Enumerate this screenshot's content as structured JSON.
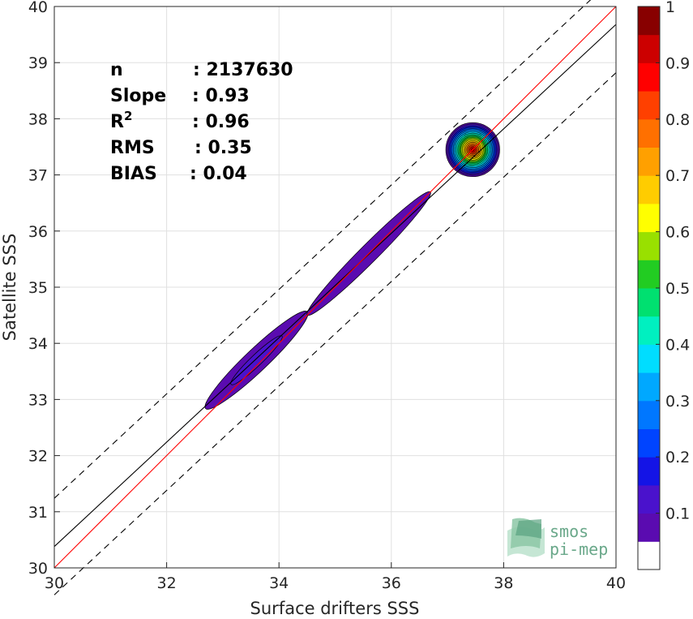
{
  "chart_data": {
    "type": "contour",
    "xlabel": "Surface drifters SSS",
    "ylabel": "Satellite SSS",
    "xlim": [
      30,
      40
    ],
    "ylim": [
      30,
      40
    ],
    "x_ticks": [
      "30",
      "32",
      "34",
      "36",
      "38",
      "40"
    ],
    "y_ticks": [
      "30",
      "31",
      "32",
      "33",
      "34",
      "35",
      "36",
      "37",
      "38",
      "39",
      "40"
    ],
    "grid": true,
    "stats": [
      {
        "label": "n",
        "value": ": 2137630"
      },
      {
        "label": "Slope",
        "value": ": 0.93"
      },
      {
        "label": "R",
        "sup": "2",
        "value": ": 0.96"
      },
      {
        "label": "RMS",
        "value": ": 0.35"
      },
      {
        "label": "BIAS",
        "value": ": 0.04"
      }
    ],
    "lines": {
      "one_to_one": {
        "slope": 1,
        "intercept": 0,
        "color": "#ff0000"
      },
      "regression": {
        "slope": 0.93,
        "intercept": 2.48,
        "color": "#000000"
      },
      "offset_upper": {
        "slope": 0.93,
        "intercept": 3.34,
        "style": "dashed"
      },
      "offset_lower": {
        "slope": 0.93,
        "intercept": 1.62,
        "style": "dashed"
      }
    },
    "density_blobs": [
      {
        "cx": 33.6,
        "cy": 33.7,
        "rx": 1.25,
        "ry": 0.2,
        "angle_data_slope": 0.95,
        "peak": 0.12
      },
      {
        "cx": 35.6,
        "cy": 35.6,
        "rx": 1.55,
        "ry": 0.16,
        "angle_data_slope": 1.0,
        "peak": 0.08
      },
      {
        "cx": 37.45,
        "cy": 37.45,
        "rx": 0.48,
        "ry": 0.48,
        "angle_data_slope": 1.0,
        "peak": 1.0
      }
    ],
    "colorbar": {
      "ticks": [
        "0.1",
        "0.2",
        "0.3",
        "0.4",
        "0.5",
        "0.6",
        "0.7",
        "0.8",
        "0.9",
        "1"
      ],
      "colors": [
        "#ffffff",
        "#5a0bb0",
        "#4a12cc",
        "#1414e6",
        "#0044ff",
        "#0077ff",
        "#00a8ff",
        "#00ddff",
        "#00f0c0",
        "#00e070",
        "#22cc22",
        "#99e000",
        "#ffff00",
        "#ffcc00",
        "#ffa000",
        "#ff7000",
        "#ff4000",
        "#ff0000",
        "#cc0000",
        "#880000"
      ]
    }
  },
  "logo": {
    "line1": "smos",
    "line2": "pi-mep"
  }
}
